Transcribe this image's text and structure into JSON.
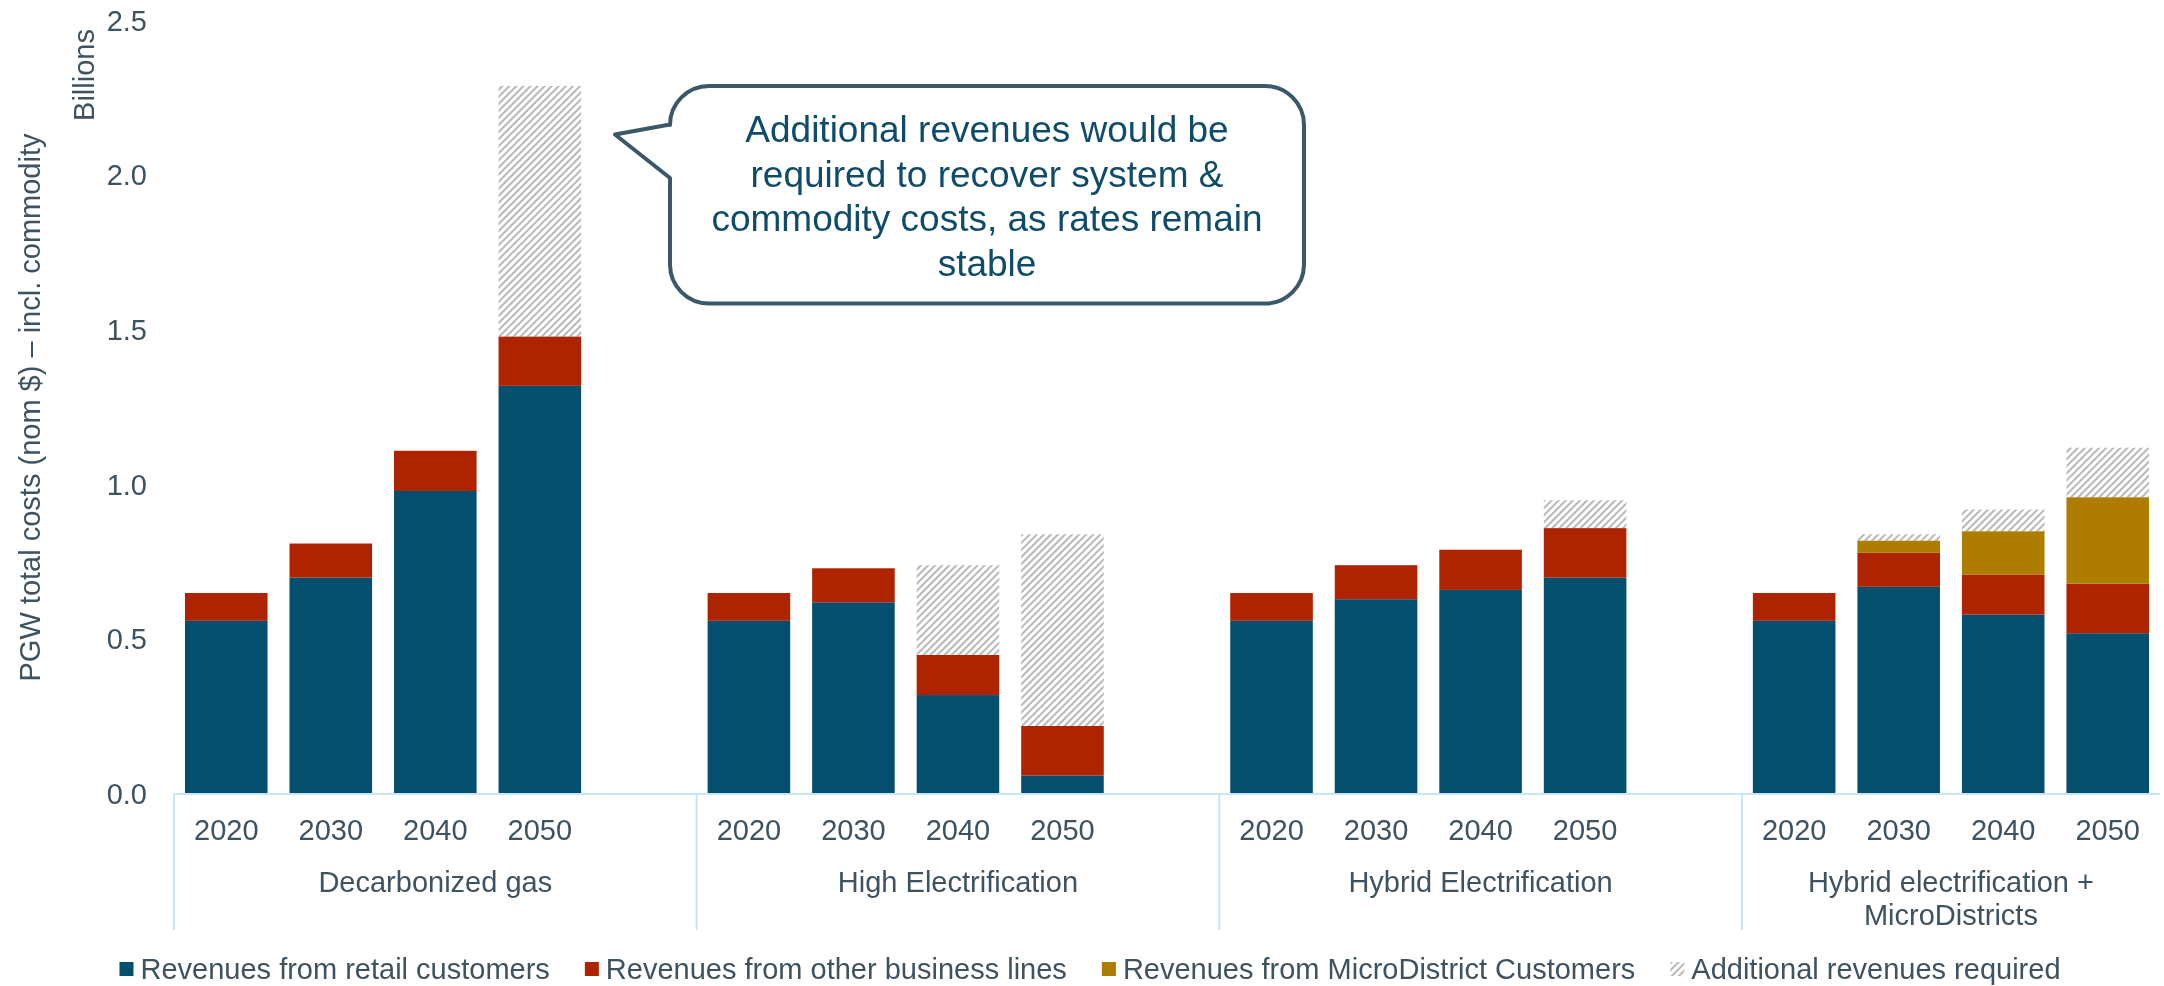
{
  "chart_data": {
    "type": "bar",
    "stacked": true,
    "ylabel": "PGW total costs (nom $) – incl. commodity",
    "categories": [
      "2020",
      "2030",
      "2040",
      "2050",
      null,
      "2020",
      "2030",
      "2040",
      "2050",
      null,
      "2020",
      "2030",
      "2040",
      "2050",
      null,
      "2020",
      "2030",
      "2040",
      "2050"
    ],
    "series": [
      {
        "name": "Revenues from retail customers",
        "color": "#044f6d",
        "values": [
          0.56,
          0.7,
          0.98,
          1.32,
          null,
          0.56,
          0.62,
          0.32,
          0.06,
          null,
          0.56,
          0.63,
          0.66,
          0.7,
          null,
          0.56,
          0.67,
          0.58,
          0.52
        ]
      },
      {
        "name": "Revenues from other business lines",
        "color": "#ae2300",
        "values": [
          0.09,
          0.11,
          0.13,
          0.16,
          null,
          0.09,
          0.11,
          0.13,
          0.16,
          null,
          0.09,
          0.11,
          0.13,
          0.16,
          null,
          0.09,
          0.11,
          0.13,
          0.16
        ]
      },
      {
        "name": "Revenues from MicroDistrict Customers",
        "color": "#ae7d00",
        "values": [
          null,
          null,
          null,
          null,
          null,
          null,
          null,
          null,
          null,
          null,
          null,
          null,
          null,
          null,
          null,
          null,
          0.04,
          0.14,
          0.28
        ]
      },
      {
        "name": "Additional revenues required",
        "color": "#b8b8b8",
        "values": [
          null,
          null,
          null,
          0.81,
          null,
          null,
          null,
          0.29,
          0.62,
          null,
          null,
          null,
          null,
          0.09,
          null,
          null,
          0.02,
          0.07,
          0.16
        ]
      }
    ],
    "ylim": [
      0,
      2.5
    ],
    "yticks": [
      {
        "value": 0,
        "label": "0.0"
      },
      0.5,
      {
        "value": 1,
        "label": "1.0"
      },
      1.5,
      {
        "value": 2,
        "label": "2.0"
      },
      2.5
    ],
    "legend": "bottom",
    "annotations": [
      "Additional revenues would be required to recover system & commodity costs, as rates remain stable",
      "Billions",
      "Decarbonized gas",
      "High Electrification",
      "Hybrid Electrification",
      "Hybrid electrification + MicroDistricts"
    ]
  }
}
